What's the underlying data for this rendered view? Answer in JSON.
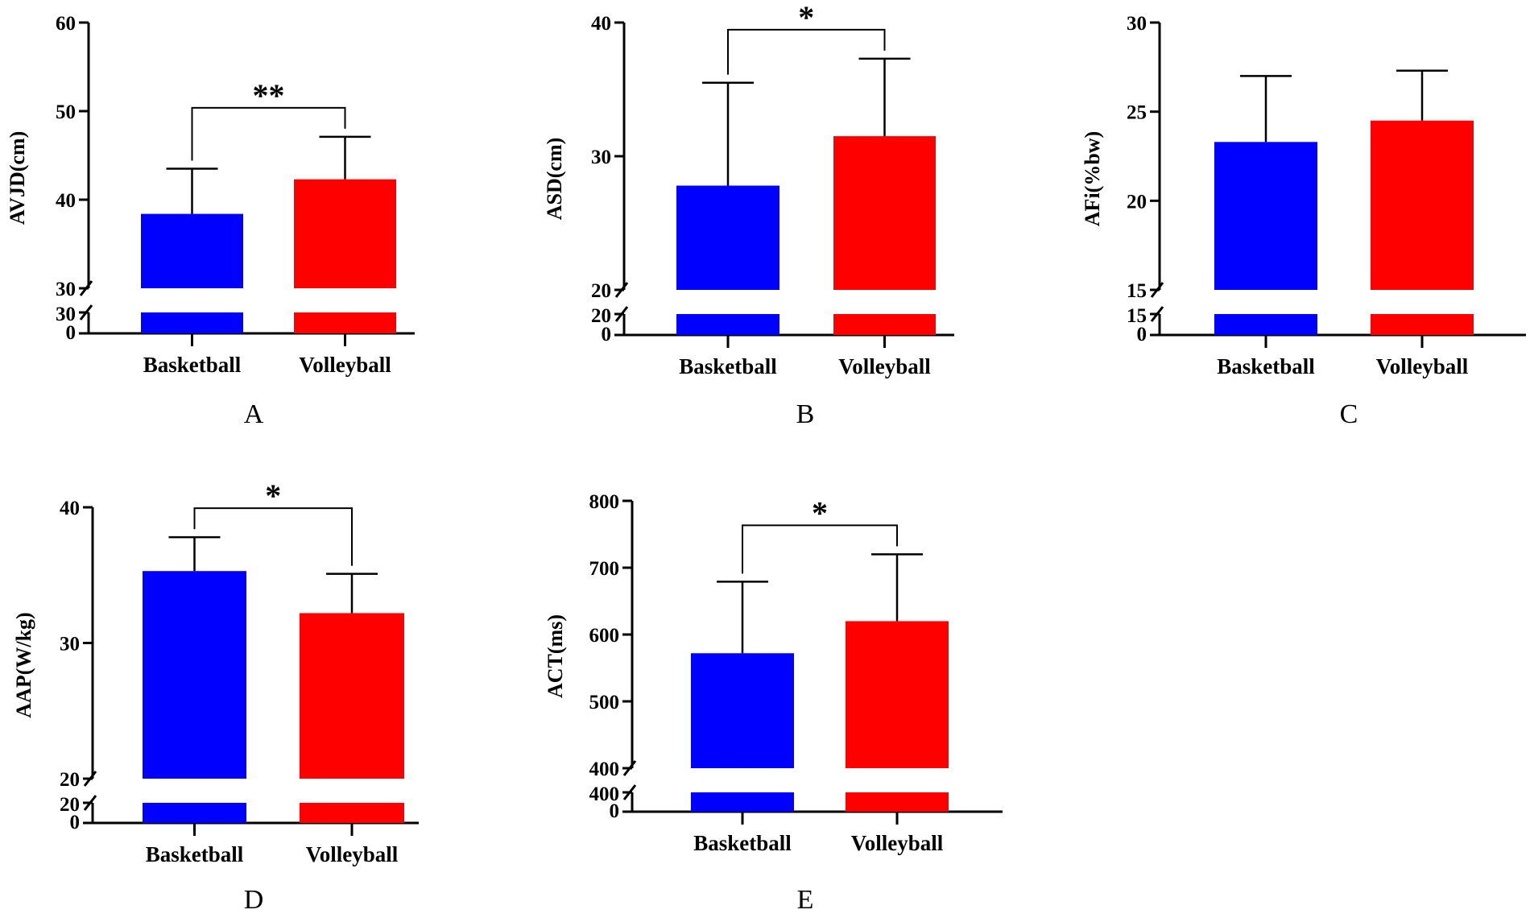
{
  "chart_data": [
    {
      "type": "bar",
      "panel_label": "A",
      "categories": [
        "Basketball",
        "Volleyball"
      ],
      "values": [
        38.4,
        42.3
      ],
      "errors": [
        5.1,
        4.8
      ],
      "colors": [
        "#0000ff",
        "#ff0000"
      ],
      "ylabel": "AVJD(cm)",
      "ylim": [
        30,
        60
      ],
      "yticks": [
        "30",
        "40",
        "50",
        "60"
      ],
      "broken_axis": {
        "lower_ticks": [
          "0",
          "30"
        ]
      },
      "significance": "**"
    },
    {
      "type": "bar",
      "panel_label": "B",
      "categories": [
        "Basketball",
        "Volleyball"
      ],
      "values": [
        27.8,
        31.5
      ],
      "errors": [
        7.7,
        5.8
      ],
      "colors": [
        "#0000ff",
        "#ff0000"
      ],
      "ylabel": "ASD(cm)",
      "ylim": [
        20,
        40
      ],
      "yticks": [
        "20",
        "30",
        "40"
      ],
      "broken_axis": {
        "lower_ticks": [
          "0",
          "20"
        ]
      },
      "significance": "*"
    },
    {
      "type": "bar",
      "panel_label": "C",
      "categories": [
        "Basketball",
        "Volleyball"
      ],
      "values": [
        23.3,
        24.5
      ],
      "errors": [
        3.7,
        2.8
      ],
      "colors": [
        "#0000ff",
        "#ff0000"
      ],
      "ylabel": "AFi(%bw)",
      "ylim": [
        15,
        30
      ],
      "yticks": [
        "15",
        "20",
        "25",
        "30"
      ],
      "broken_axis": {
        "lower_ticks": [
          "0",
          "15"
        ]
      },
      "significance": ""
    },
    {
      "type": "bar",
      "panel_label": "D",
      "categories": [
        "Basketball",
        "Volleyball"
      ],
      "values": [
        35.3,
        32.2
      ],
      "errors": [
        2.5,
        2.9
      ],
      "colors": [
        "#0000ff",
        "#ff0000"
      ],
      "ylabel": "AAP(W/kg)",
      "ylim": [
        20,
        40
      ],
      "yticks": [
        "20",
        "30",
        "40"
      ],
      "broken_axis": {
        "lower_ticks": [
          "0",
          "20"
        ]
      },
      "significance": "*"
    },
    {
      "type": "bar",
      "panel_label": "E",
      "categories": [
        "Basketball",
        "Volleyball"
      ],
      "values": [
        572,
        620
      ],
      "errors": [
        107,
        100
      ],
      "colors": [
        "#0000ff",
        "#ff0000"
      ],
      "ylabel": "ACT(ms)",
      "ylim": [
        400,
        800
      ],
      "yticks": [
        "400",
        "500",
        "600",
        "700",
        "800"
      ],
      "broken_axis": {
        "lower_ticks": [
          "0",
          "400"
        ]
      },
      "significance": "*"
    }
  ]
}
